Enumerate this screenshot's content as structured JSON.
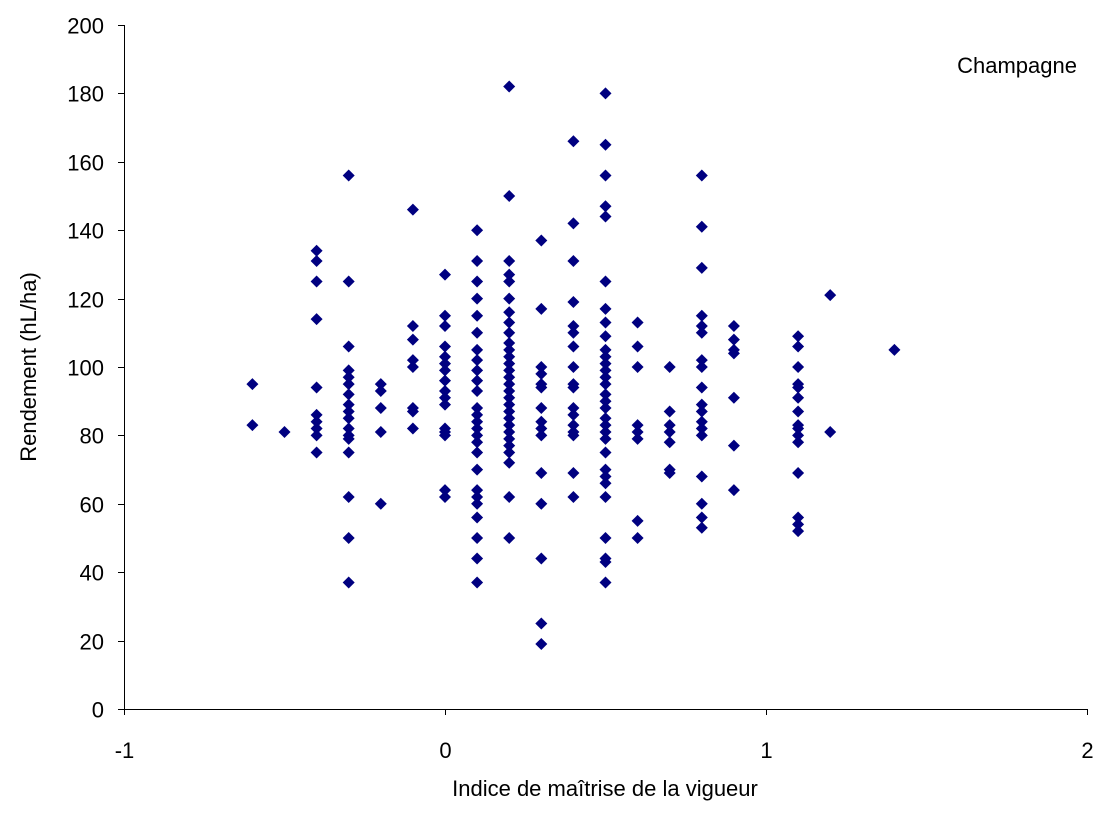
{
  "chart_data": {
    "type": "scatter",
    "annotation": "Champagne",
    "xlabel": "Indice de maîtrise de la vigueur",
    "ylabel": "Rendement (hL/ha)",
    "xlim": [
      -1,
      2
    ],
    "ylim": [
      0,
      200
    ],
    "xticks": [
      -1,
      0,
      1,
      2
    ],
    "yticks": [
      0,
      20,
      40,
      60,
      80,
      100,
      120,
      140,
      160,
      180,
      200
    ],
    "grid": false,
    "marker": "diamond",
    "color": "#000080",
    "points": [
      [
        -0.6,
        95
      ],
      [
        -0.6,
        83
      ],
      [
        -0.5,
        81
      ],
      [
        -0.4,
        134
      ],
      [
        -0.4,
        131
      ],
      [
        -0.4,
        125
      ],
      [
        -0.4,
        114
      ],
      [
        -0.4,
        94
      ],
      [
        -0.4,
        86
      ],
      [
        -0.4,
        84
      ],
      [
        -0.4,
        82
      ],
      [
        -0.4,
        80
      ],
      [
        -0.4,
        75
      ],
      [
        -0.3,
        156
      ],
      [
        -0.3,
        125
      ],
      [
        -0.3,
        106
      ],
      [
        -0.3,
        99
      ],
      [
        -0.3,
        97
      ],
      [
        -0.3,
        95
      ],
      [
        -0.3,
        92
      ],
      [
        -0.3,
        89
      ],
      [
        -0.3,
        87
      ],
      [
        -0.3,
        85
      ],
      [
        -0.3,
        82
      ],
      [
        -0.3,
        80
      ],
      [
        -0.3,
        79
      ],
      [
        -0.3,
        75
      ],
      [
        -0.3,
        62
      ],
      [
        -0.3,
        50
      ],
      [
        -0.3,
        37
      ],
      [
        -0.2,
        95
      ],
      [
        -0.2,
        93
      ],
      [
        -0.2,
        88
      ],
      [
        -0.2,
        81
      ],
      [
        -0.2,
        60
      ],
      [
        -0.1,
        146
      ],
      [
        -0.1,
        112
      ],
      [
        -0.1,
        108
      ],
      [
        -0.1,
        102
      ],
      [
        -0.1,
        100
      ],
      [
        -0.1,
        88
      ],
      [
        -0.1,
        87
      ],
      [
        -0.1,
        82
      ],
      [
        0.0,
        127
      ],
      [
        0.0,
        115
      ],
      [
        0.0,
        112
      ],
      [
        0.0,
        106
      ],
      [
        0.0,
        103
      ],
      [
        0.0,
        101
      ],
      [
        0.0,
        99
      ],
      [
        0.0,
        96
      ],
      [
        0.0,
        93
      ],
      [
        0.0,
        91
      ],
      [
        0.0,
        89
      ],
      [
        0.0,
        82
      ],
      [
        0.0,
        81
      ],
      [
        0.0,
        80
      ],
      [
        0.0,
        64
      ],
      [
        0.0,
        62
      ],
      [
        0.1,
        140
      ],
      [
        0.1,
        131
      ],
      [
        0.1,
        125
      ],
      [
        0.1,
        120
      ],
      [
        0.1,
        115
      ],
      [
        0.1,
        110
      ],
      [
        0.1,
        105
      ],
      [
        0.1,
        102
      ],
      [
        0.1,
        99
      ],
      [
        0.1,
        96
      ],
      [
        0.1,
        93
      ],
      [
        0.1,
        88
      ],
      [
        0.1,
        86
      ],
      [
        0.1,
        84
      ],
      [
        0.1,
        82
      ],
      [
        0.1,
        80
      ],
      [
        0.1,
        78
      ],
      [
        0.1,
        75
      ],
      [
        0.1,
        70
      ],
      [
        0.1,
        64
      ],
      [
        0.1,
        62
      ],
      [
        0.1,
        60
      ],
      [
        0.1,
        56
      ],
      [
        0.1,
        50
      ],
      [
        0.1,
        44
      ],
      [
        0.1,
        37
      ],
      [
        0.2,
        182
      ],
      [
        0.2,
        150
      ],
      [
        0.2,
        131
      ],
      [
        0.2,
        127
      ],
      [
        0.2,
        125
      ],
      [
        0.2,
        120
      ],
      [
        0.2,
        116
      ],
      [
        0.2,
        113
      ],
      [
        0.2,
        110
      ],
      [
        0.2,
        107
      ],
      [
        0.2,
        105
      ],
      [
        0.2,
        103
      ],
      [
        0.2,
        101
      ],
      [
        0.2,
        99
      ],
      [
        0.2,
        97
      ],
      [
        0.2,
        95
      ],
      [
        0.2,
        93
      ],
      [
        0.2,
        91
      ],
      [
        0.2,
        89
      ],
      [
        0.2,
        87
      ],
      [
        0.2,
        85
      ],
      [
        0.2,
        83
      ],
      [
        0.2,
        81
      ],
      [
        0.2,
        79
      ],
      [
        0.2,
        77
      ],
      [
        0.2,
        75
      ],
      [
        0.2,
        72
      ],
      [
        0.2,
        62
      ],
      [
        0.2,
        50
      ],
      [
        0.3,
        137
      ],
      [
        0.3,
        117
      ],
      [
        0.3,
        100
      ],
      [
        0.3,
        98
      ],
      [
        0.3,
        95
      ],
      [
        0.3,
        94
      ],
      [
        0.3,
        88
      ],
      [
        0.3,
        84
      ],
      [
        0.3,
        82
      ],
      [
        0.3,
        80
      ],
      [
        0.3,
        69
      ],
      [
        0.3,
        60
      ],
      [
        0.3,
        44
      ],
      [
        0.3,
        25
      ],
      [
        0.3,
        19
      ],
      [
        0.4,
        166
      ],
      [
        0.4,
        142
      ],
      [
        0.4,
        131
      ],
      [
        0.4,
        119
      ],
      [
        0.4,
        112
      ],
      [
        0.4,
        110
      ],
      [
        0.4,
        106
      ],
      [
        0.4,
        100
      ],
      [
        0.4,
        95
      ],
      [
        0.4,
        94
      ],
      [
        0.4,
        88
      ],
      [
        0.4,
        86
      ],
      [
        0.4,
        83
      ],
      [
        0.4,
        81
      ],
      [
        0.4,
        80
      ],
      [
        0.4,
        69
      ],
      [
        0.4,
        62
      ],
      [
        0.5,
        180
      ],
      [
        0.5,
        165
      ],
      [
        0.5,
        156
      ],
      [
        0.5,
        147
      ],
      [
        0.5,
        144
      ],
      [
        0.5,
        125
      ],
      [
        0.5,
        117
      ],
      [
        0.5,
        113
      ],
      [
        0.5,
        109
      ],
      [
        0.5,
        105
      ],
      [
        0.5,
        103
      ],
      [
        0.5,
        101
      ],
      [
        0.5,
        99
      ],
      [
        0.5,
        97
      ],
      [
        0.5,
        95
      ],
      [
        0.5,
        92
      ],
      [
        0.5,
        90
      ],
      [
        0.5,
        88
      ],
      [
        0.5,
        85
      ],
      [
        0.5,
        83
      ],
      [
        0.5,
        81
      ],
      [
        0.5,
        79
      ],
      [
        0.5,
        75
      ],
      [
        0.5,
        70
      ],
      [
        0.5,
        68
      ],
      [
        0.5,
        66
      ],
      [
        0.5,
        62
      ],
      [
        0.5,
        50
      ],
      [
        0.5,
        44
      ],
      [
        0.5,
        43
      ],
      [
        0.5,
        37
      ],
      [
        0.6,
        113
      ],
      [
        0.6,
        106
      ],
      [
        0.6,
        100
      ],
      [
        0.6,
        83
      ],
      [
        0.6,
        81
      ],
      [
        0.6,
        79
      ],
      [
        0.6,
        55
      ],
      [
        0.6,
        50
      ],
      [
        0.7,
        100
      ],
      [
        0.7,
        87
      ],
      [
        0.7,
        83
      ],
      [
        0.7,
        81
      ],
      [
        0.7,
        78
      ],
      [
        0.7,
        70
      ],
      [
        0.7,
        69
      ],
      [
        0.8,
        156
      ],
      [
        0.8,
        141
      ],
      [
        0.8,
        129
      ],
      [
        0.8,
        115
      ],
      [
        0.8,
        112
      ],
      [
        0.8,
        110
      ],
      [
        0.8,
        102
      ],
      [
        0.8,
        100
      ],
      [
        0.8,
        94
      ],
      [
        0.8,
        89
      ],
      [
        0.8,
        87
      ],
      [
        0.8,
        84
      ],
      [
        0.8,
        82
      ],
      [
        0.8,
        80
      ],
      [
        0.8,
        68
      ],
      [
        0.8,
        60
      ],
      [
        0.8,
        56
      ],
      [
        0.8,
        53
      ],
      [
        0.9,
        112
      ],
      [
        0.9,
        108
      ],
      [
        0.9,
        105
      ],
      [
        0.9,
        104
      ],
      [
        0.9,
        91
      ],
      [
        0.9,
        77
      ],
      [
        0.9,
        64
      ],
      [
        1.1,
        109
      ],
      [
        1.1,
        106
      ],
      [
        1.1,
        100
      ],
      [
        1.1,
        95
      ],
      [
        1.1,
        94
      ],
      [
        1.1,
        91
      ],
      [
        1.1,
        87
      ],
      [
        1.1,
        83
      ],
      [
        1.1,
        82
      ],
      [
        1.1,
        80
      ],
      [
        1.1,
        78
      ],
      [
        1.1,
        69
      ],
      [
        1.1,
        56
      ],
      [
        1.1,
        54
      ],
      [
        1.1,
        52
      ],
      [
        1.2,
        121
      ],
      [
        1.2,
        81
      ],
      [
        1.4,
        105
      ]
    ]
  }
}
